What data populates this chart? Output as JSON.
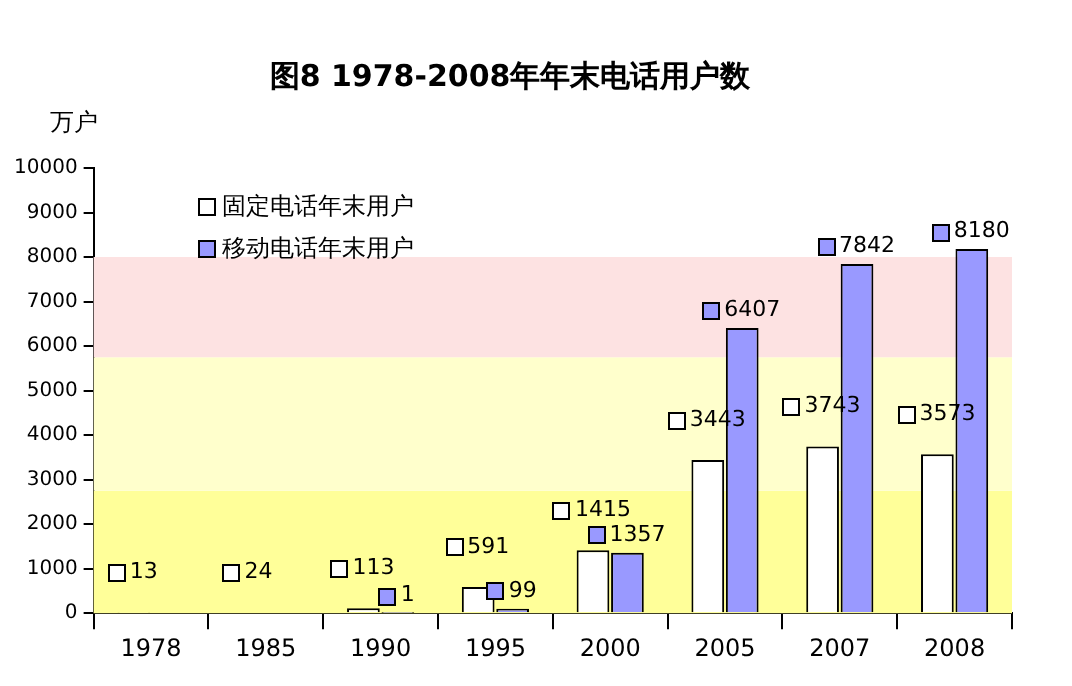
{
  "chart_data": {
    "type": "bar",
    "title": "图8 1978-2008年年末电话用户数",
    "ylabel": "万户",
    "categories": [
      "1978",
      "1985",
      "1990",
      "1995",
      "2000",
      "2005",
      "2007",
      "2008"
    ],
    "series": [
      {
        "name": "固定电话年末用户",
        "color": "#ffffff",
        "values": [
          13,
          24,
          113,
          591,
          1415,
          3443,
          3743,
          3573
        ]
      },
      {
        "name": "移动电话年末用户",
        "color": "#9999ff",
        "values": [
          null,
          null,
          1,
          99,
          1357,
          6407,
          7842,
          8180
        ]
      }
    ],
    "ylim": [
      0,
      10000
    ],
    "yticks": [
      0,
      1000,
      2000,
      3000,
      4000,
      5000,
      6000,
      7000,
      8000,
      9000,
      10000
    ],
    "bands": [
      {
        "axis": "y",
        "from": 0,
        "to": 2750,
        "color": "#ffff99"
      },
      {
        "axis": "y",
        "from": 2750,
        "to": 5750,
        "color": "#ffffcc"
      },
      {
        "axis": "y",
        "from": 5750,
        "to": 8000,
        "color": "#fde2e2"
      }
    ],
    "data_labels": true,
    "grid": false,
    "legend": "top left"
  }
}
